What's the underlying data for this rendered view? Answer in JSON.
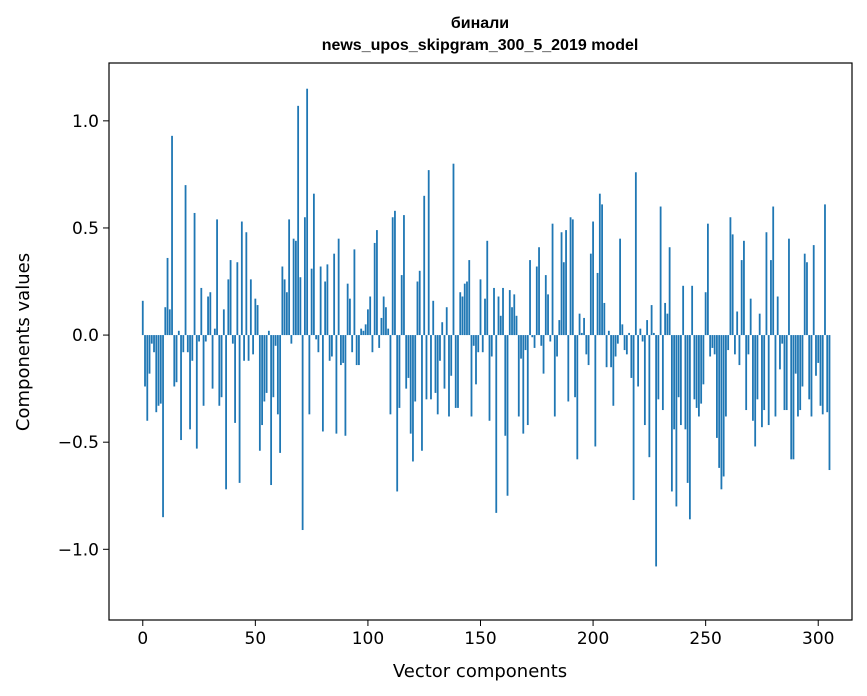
{
  "chart_data": {
    "type": "bar",
    "title_lines": [
      "бинали",
      "news_upos_skipgram_300_5_2019 model"
    ],
    "xlabel": "Vector components",
    "ylabel": "Components values",
    "xlim": [
      -15,
      315
    ],
    "ylim": [
      -1.33,
      1.27
    ],
    "xticks": [
      0,
      50,
      100,
      150,
      200,
      250,
      300
    ],
    "xtick_labels": [
      "0",
      "50",
      "100",
      "150",
      "200",
      "250",
      "300"
    ],
    "yticks": [
      -1.0,
      -0.5,
      0.0,
      0.5,
      1.0
    ],
    "ytick_labels": [
      "−1.0",
      "−0.5",
      "0.0",
      "0.5",
      "1.0"
    ],
    "bar_color": "#1f77b4",
    "values": [
      0.16,
      -0.24,
      -0.4,
      -0.18,
      -0.04,
      -0.08,
      -0.36,
      -0.33,
      -0.32,
      -0.85,
      0.13,
      0.36,
      0.12,
      0.93,
      -0.24,
      -0.22,
      0.02,
      -0.49,
      -0.08,
      0.7,
      -0.08,
      -0.44,
      -0.12,
      0.57,
      -0.53,
      -0.03,
      0.22,
      -0.33,
      -0.03,
      0.18,
      0.2,
      -0.25,
      0.03,
      0.54,
      -0.33,
      -0.29,
      0.12,
      -0.72,
      0.26,
      0.35,
      -0.04,
      -0.41,
      0.34,
      -0.69,
      0.53,
      -0.12,
      0.48,
      -0.12,
      0.26,
      -0.09,
      0.17,
      0.14,
      -0.54,
      -0.42,
      -0.31,
      -0.27,
      0.02,
      -0.7,
      -0.29,
      -0.05,
      -0.37,
      -0.55,
      0.32,
      0.26,
      0.2,
      0.54,
      -0.04,
      0.45,
      0.44,
      1.07,
      0.27,
      -0.91,
      0.55,
      1.15,
      -0.37,
      0.31,
      0.66,
      -0.02,
      -0.08,
      0.32,
      -0.45,
      0.25,
      0.33,
      -0.12,
      -0.1,
      0.38,
      -0.46,
      0.45,
      -0.14,
      -0.13,
      -0.47,
      0.24,
      0.17,
      -0.08,
      0.4,
      -0.14,
      -0.14,
      0.03,
      0.02,
      0.05,
      0.12,
      0.18,
      -0.08,
      0.43,
      0.49,
      -0.06,
      0.08,
      0.18,
      0.13,
      0.03,
      -0.37,
      0.55,
      0.58,
      -0.73,
      -0.34,
      0.28,
      0.56,
      -0.25,
      -0.2,
      -0.46,
      -0.59,
      -0.31,
      0.25,
      0.3,
      -0.54,
      0.65,
      -0.3,
      0.77,
      -0.3,
      0.16,
      -0.27,
      -0.37,
      -0.12,
      0.06,
      -0.25,
      0.13,
      -0.38,
      -0.19,
      0.8,
      -0.34,
      -0.34,
      0.2,
      0.18,
      0.24,
      0.25,
      0.35,
      -0.38,
      -0.05,
      -0.23,
      -0.08,
      0.26,
      -0.08,
      0.17,
      0.44,
      -0.4,
      -0.1,
      0.22,
      -0.83,
      0.18,
      0.09,
      0.22,
      -0.47,
      -0.75,
      0.21,
      0.13,
      0.19,
      0.09,
      -0.38,
      -0.11,
      -0.46,
      -0.07,
      -0.42,
      0.35,
      -0.01,
      -0.06,
      0.32,
      0.41,
      -0.05,
      -0.18,
      0.28,
      0.19,
      -0.03,
      0.52,
      -0.38,
      -0.1,
      0.07,
      0.48,
      0.34,
      0.49,
      -0.31,
      0.55,
      0.54,
      -0.29,
      -0.58,
      0.1,
      0.01,
      0.08,
      -0.09,
      -0.14,
      0.38,
      0.53,
      -0.52,
      0.29,
      0.66,
      0.61,
      0.15,
      -0.15,
      0.02,
      -0.15,
      -0.33,
      -0.1,
      -0.04,
      0.45,
      0.05,
      -0.07,
      -0.09,
      0.01,
      -0.2,
      -0.77,
      0.76,
      -0.24,
      0.03,
      -0.03,
      -0.42,
      0.07,
      -0.57,
      0.14,
      0.01,
      -1.08,
      -0.3,
      0.6,
      -0.35,
      0.15,
      0.1,
      0.41,
      -0.73,
      -0.44,
      -0.8,
      -0.29,
      -0.42,
      0.23,
      -0.44,
      -0.69,
      -0.86,
      0.23,
      -0.3,
      -0.34,
      -0.38,
      -0.32,
      -0.23,
      0.2,
      0.52,
      -0.1,
      -0.06,
      -0.09,
      -0.48,
      -0.62,
      -0.72,
      -0.66,
      -0.38,
      -0.07,
      0.55,
      0.47,
      -0.09,
      0.11,
      -0.14,
      0.35,
      0.44,
      -0.35,
      -0.09,
      0.17,
      -0.4,
      -0.52,
      -0.3,
      0.1,
      -0.43,
      -0.35,
      0.48,
      -0.42,
      0.35,
      0.6,
      -0.38,
      0.18,
      -0.16,
      -0.04,
      -0.35,
      -0.35,
      0.45,
      -0.58,
      -0.58,
      -0.18,
      -0.38,
      -0.35,
      -0.24,
      0.38,
      0.34,
      -0.3,
      -0.38,
      0.42,
      -0.19,
      -0.13,
      -0.33,
      -0.37,
      0.61,
      -0.36,
      -0.63
    ]
  }
}
